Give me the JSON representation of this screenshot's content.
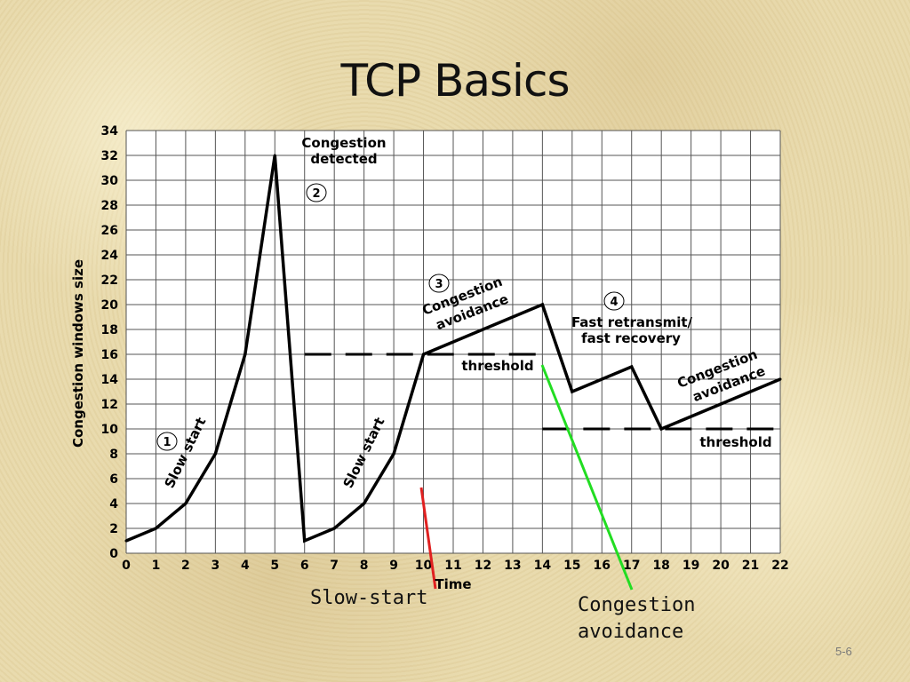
{
  "slide": {
    "title": "TCP Basics",
    "page_number": "5-6",
    "captions": {
      "slow_start": "Slow-start",
      "congestion_avoidance_line1": "Congestion",
      "congestion_avoidance_line2": "avoidance"
    }
  },
  "chart_data": {
    "type": "line",
    "title": "",
    "xlabel": "Time",
    "ylabel": "Congestion windows size",
    "xlim": [
      0,
      22
    ],
    "ylim": [
      0,
      34
    ],
    "x_ticks": [
      0,
      1,
      2,
      3,
      4,
      5,
      6,
      7,
      8,
      9,
      10,
      11,
      12,
      13,
      14,
      15,
      16,
      17,
      18,
      19,
      20,
      21,
      22
    ],
    "y_ticks": [
      0,
      2,
      4,
      6,
      8,
      10,
      12,
      14,
      16,
      18,
      20,
      22,
      24,
      26,
      28,
      30,
      32,
      34
    ],
    "grid": true,
    "series": [
      {
        "x": [
          0,
          1,
          2,
          3,
          4,
          5,
          6,
          7,
          8,
          9,
          10,
          14,
          15,
          17,
          18,
          22
        ],
        "y": [
          1,
          2,
          4,
          8,
          16,
          32,
          1,
          2,
          4,
          8,
          16,
          20,
          13,
          15,
          10,
          14
        ],
        "color": "#000000"
      }
    ],
    "thresholds": [
      {
        "x": [
          6,
          14
        ],
        "y": 16,
        "label": "threshold"
      },
      {
        "x": [
          14,
          22
        ],
        "y": 10,
        "label": "threshold"
      }
    ],
    "annotations": {
      "congestion_detected": [
        "Congestion",
        "detected"
      ],
      "fast_retransmit": [
        "Fast retransmit/",
        "fast recovery"
      ],
      "slow_start": "Slow start",
      "congestion_avoidance": [
        "Congestion",
        "avoidance"
      ],
      "markers": [
        "1",
        "2",
        "3",
        "4"
      ]
    },
    "pointer_lines": [
      {
        "name": "slow-start-pointer",
        "color": "#e02020"
      },
      {
        "name": "congestion-avoidance-pointer",
        "color": "#22dd22"
      }
    ]
  }
}
